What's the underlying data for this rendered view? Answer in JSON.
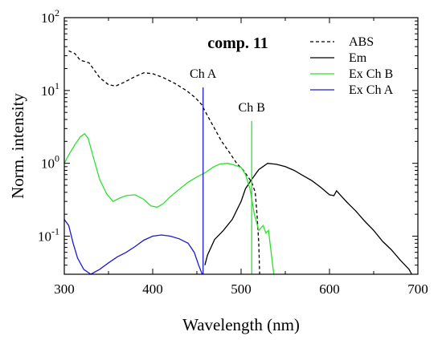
{
  "chart_data": {
    "type": "line",
    "title": "comp. 11",
    "xlabel": "Wavelength (nm)",
    "ylabel": "Norm. intensity",
    "xlim": [
      300,
      700
    ],
    "ylim": [
      0.03,
      100
    ],
    "y_scale": "log",
    "grid": false,
    "legend_position": "top-right",
    "x_ticks": [
      {
        "value": 300,
        "label": "300"
      },
      {
        "value": 400,
        "label": "400"
      },
      {
        "value": 500,
        "label": "500"
      },
      {
        "value": 600,
        "label": "600"
      },
      {
        "value": 700,
        "label": "700"
      }
    ],
    "y_ticks": [
      {
        "value": 0.1,
        "base": "10",
        "exp": "-1"
      },
      {
        "value": 1,
        "base": "10",
        "exp": "0"
      },
      {
        "value": 10,
        "base": "10",
        "exp": "1"
      },
      {
        "value": 100,
        "base": "10",
        "exp": "2"
      }
    ],
    "series": [
      {
        "name": "ABS",
        "color": "#000000",
        "dash": "dashed",
        "points": [
          [
            305,
            35
          ],
          [
            312,
            32
          ],
          [
            318,
            26
          ],
          [
            328,
            24
          ],
          [
            340,
            15
          ],
          [
            350,
            12
          ],
          [
            358,
            11.5
          ],
          [
            368,
            13
          ],
          [
            380,
            15.5
          ],
          [
            390,
            17.5
          ],
          [
            400,
            17
          ],
          [
            412,
            15
          ],
          [
            425,
            12.5
          ],
          [
            438,
            10
          ],
          [
            448,
            8
          ],
          [
            455,
            6.5
          ],
          [
            462,
            4.5
          ],
          [
            470,
            3
          ],
          [
            478,
            2
          ],
          [
            487,
            1.4
          ],
          [
            495,
            1.0
          ],
          [
            502,
            0.82
          ],
          [
            508,
            0.65
          ],
          [
            512,
            0.55
          ],
          [
            516,
            0.4
          ],
          [
            518,
            0.2
          ],
          [
            520,
            0.08
          ],
          [
            521,
            0.03
          ]
        ]
      },
      {
        "name": "Em",
        "color": "#000000",
        "dash": "solid",
        "points": [
          [
            459,
            0.04
          ],
          [
            462,
            0.055
          ],
          [
            470,
            0.09
          ],
          [
            480,
            0.12
          ],
          [
            490,
            0.17
          ],
          [
            500,
            0.3
          ],
          [
            505,
            0.45
          ],
          [
            512,
            0.6
          ],
          [
            520,
            0.82
          ],
          [
            530,
            1.0
          ],
          [
            540,
            0.97
          ],
          [
            550,
            0.9
          ],
          [
            560,
            0.8
          ],
          [
            570,
            0.68
          ],
          [
            580,
            0.58
          ],
          [
            590,
            0.47
          ],
          [
            600,
            0.37
          ],
          [
            605,
            0.36
          ],
          [
            608,
            0.42
          ],
          [
            612,
            0.37
          ],
          [
            620,
            0.29
          ],
          [
            630,
            0.22
          ],
          [
            640,
            0.16
          ],
          [
            650,
            0.12
          ],
          [
            660,
            0.085
          ],
          [
            670,
            0.065
          ],
          [
            680,
            0.047
          ],
          [
            690,
            0.035
          ],
          [
            693,
            0.03
          ]
        ]
      },
      {
        "name": "Ex Ch B",
        "color": "#2ee02e",
        "dash": "solid",
        "points": [
          [
            300,
            1.0
          ],
          [
            305,
            1.3
          ],
          [
            312,
            1.8
          ],
          [
            318,
            2.3
          ],
          [
            323,
            2.55
          ],
          [
            327,
            2.2
          ],
          [
            333,
            1.2
          ],
          [
            340,
            0.6
          ],
          [
            348,
            0.38
          ],
          [
            355,
            0.3
          ],
          [
            362,
            0.33
          ],
          [
            370,
            0.36
          ],
          [
            380,
            0.37
          ],
          [
            390,
            0.32
          ],
          [
            398,
            0.26
          ],
          [
            405,
            0.25
          ],
          [
            412,
            0.28
          ],
          [
            420,
            0.35
          ],
          [
            430,
            0.44
          ],
          [
            440,
            0.55
          ],
          [
            450,
            0.65
          ],
          [
            460,
            0.75
          ],
          [
            468,
            0.88
          ],
          [
            476,
            0.98
          ],
          [
            485,
            1.0
          ],
          [
            492,
            0.95
          ],
          [
            500,
            0.88
          ],
          [
            505,
            0.7
          ],
          [
            510,
            0.45
          ],
          [
            515,
            0.2
          ],
          [
            520,
            0.12
          ],
          [
            525,
            0.14
          ],
          [
            528,
            0.11
          ],
          [
            531,
            0.12
          ],
          [
            534,
            0.06
          ],
          [
            537,
            0.03
          ]
        ]
      },
      {
        "name": "Ex Ch A",
        "color": "#1a1acc",
        "dash": "solid",
        "points": [
          [
            300,
            0.17
          ],
          [
            305,
            0.14
          ],
          [
            310,
            0.08
          ],
          [
            315,
            0.05
          ],
          [
            322,
            0.035
          ],
          [
            330,
            0.03
          ],
          [
            340,
            0.035
          ],
          [
            350,
            0.043
          ],
          [
            360,
            0.052
          ],
          [
            370,
            0.06
          ],
          [
            380,
            0.072
          ],
          [
            390,
            0.088
          ],
          [
            400,
            0.1
          ],
          [
            410,
            0.104
          ],
          [
            420,
            0.1
          ],
          [
            430,
            0.092
          ],
          [
            440,
            0.08
          ],
          [
            447,
            0.06
          ],
          [
            452,
            0.04
          ],
          [
            456,
            0.03
          ]
        ]
      }
    ],
    "annotations": [
      {
        "label": "Ch A",
        "x": 457,
        "y_top": 11,
        "color": "#1a1acc"
      },
      {
        "label": "Ch B",
        "x": 512,
        "y_top": 3.8,
        "color": "#2ee02e"
      }
    ]
  }
}
